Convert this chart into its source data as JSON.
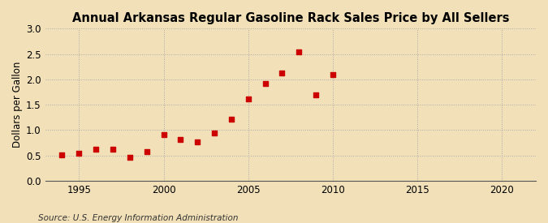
{
  "title": "Annual Arkansas Regular Gasoline Rack Sales Price by All Sellers",
  "ylabel": "Dollars per Gallon",
  "source": "Source: U.S. Energy Information Administration",
  "background_color": "#f2e0b8",
  "plot_background_color": "#f2e0b8",
  "marker_color": "#cc0000",
  "years": [
    1994,
    1995,
    1996,
    1997,
    1998,
    1999,
    2000,
    2001,
    2002,
    2003,
    2004,
    2005,
    2006,
    2007,
    2008,
    2009,
    2010
  ],
  "values": [
    0.51,
    0.55,
    0.63,
    0.63,
    0.47,
    0.57,
    0.91,
    0.81,
    0.77,
    0.94,
    1.21,
    1.61,
    1.92,
    2.13,
    2.54,
    1.7,
    2.1
  ],
  "xlim": [
    1993,
    2022
  ],
  "ylim": [
    0.0,
    3.0
  ],
  "xticks": [
    1995,
    2000,
    2005,
    2010,
    2015,
    2020
  ],
  "yticks": [
    0.0,
    0.5,
    1.0,
    1.5,
    2.0,
    2.5,
    3.0
  ],
  "title_fontsize": 10.5,
  "label_fontsize": 8.5,
  "source_fontsize": 7.5,
  "grid_color": "#aaaaaa",
  "grid_linestyle": ":",
  "grid_linewidth": 0.7
}
